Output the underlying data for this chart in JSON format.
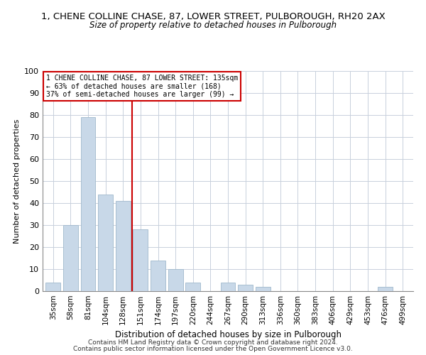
{
  "title": "1, CHENE COLLINE CHASE, 87, LOWER STREET, PULBOROUGH, RH20 2AX",
  "subtitle": "Size of property relative to detached houses in Pulborough",
  "xlabel": "Distribution of detached houses by size in Pulborough",
  "ylabel": "Number of detached properties",
  "bar_labels": [
    "35sqm",
    "58sqm",
    "81sqm",
    "104sqm",
    "128sqm",
    "151sqm",
    "174sqm",
    "197sqm",
    "220sqm",
    "244sqm",
    "267sqm",
    "290sqm",
    "313sqm",
    "336sqm",
    "360sqm",
    "383sqm",
    "406sqm",
    "429sqm",
    "453sqm",
    "476sqm",
    "499sqm"
  ],
  "bar_values": [
    4,
    30,
    79,
    44,
    41,
    28,
    14,
    10,
    4,
    0,
    4,
    3,
    2,
    0,
    0,
    0,
    0,
    0,
    0,
    2,
    0
  ],
  "bar_color": "#c8d8e8",
  "bar_edge_color": "#a0b8cc",
  "vline_x": 4.5,
  "vline_color": "#cc0000",
  "annot_line1": "1 CHENE COLLINE CHASE, 87 LOWER STREET: 135sqm",
  "annot_line2": "← 63% of detached houses are smaller (168)",
  "annot_line3": "37% of semi-detached houses are larger (99) →",
  "annotation_box_color": "#ffffff",
  "annotation_box_edge": "#cc0000",
  "ylim": [
    0,
    100
  ],
  "yticks": [
    0,
    10,
    20,
    30,
    40,
    50,
    60,
    70,
    80,
    90,
    100
  ],
  "footer1": "Contains HM Land Registry data © Crown copyright and database right 2024.",
  "footer2": "Contains public sector information licensed under the Open Government Licence v3.0.",
  "background_color": "#ffffff",
  "grid_color": "#c8d0dc"
}
